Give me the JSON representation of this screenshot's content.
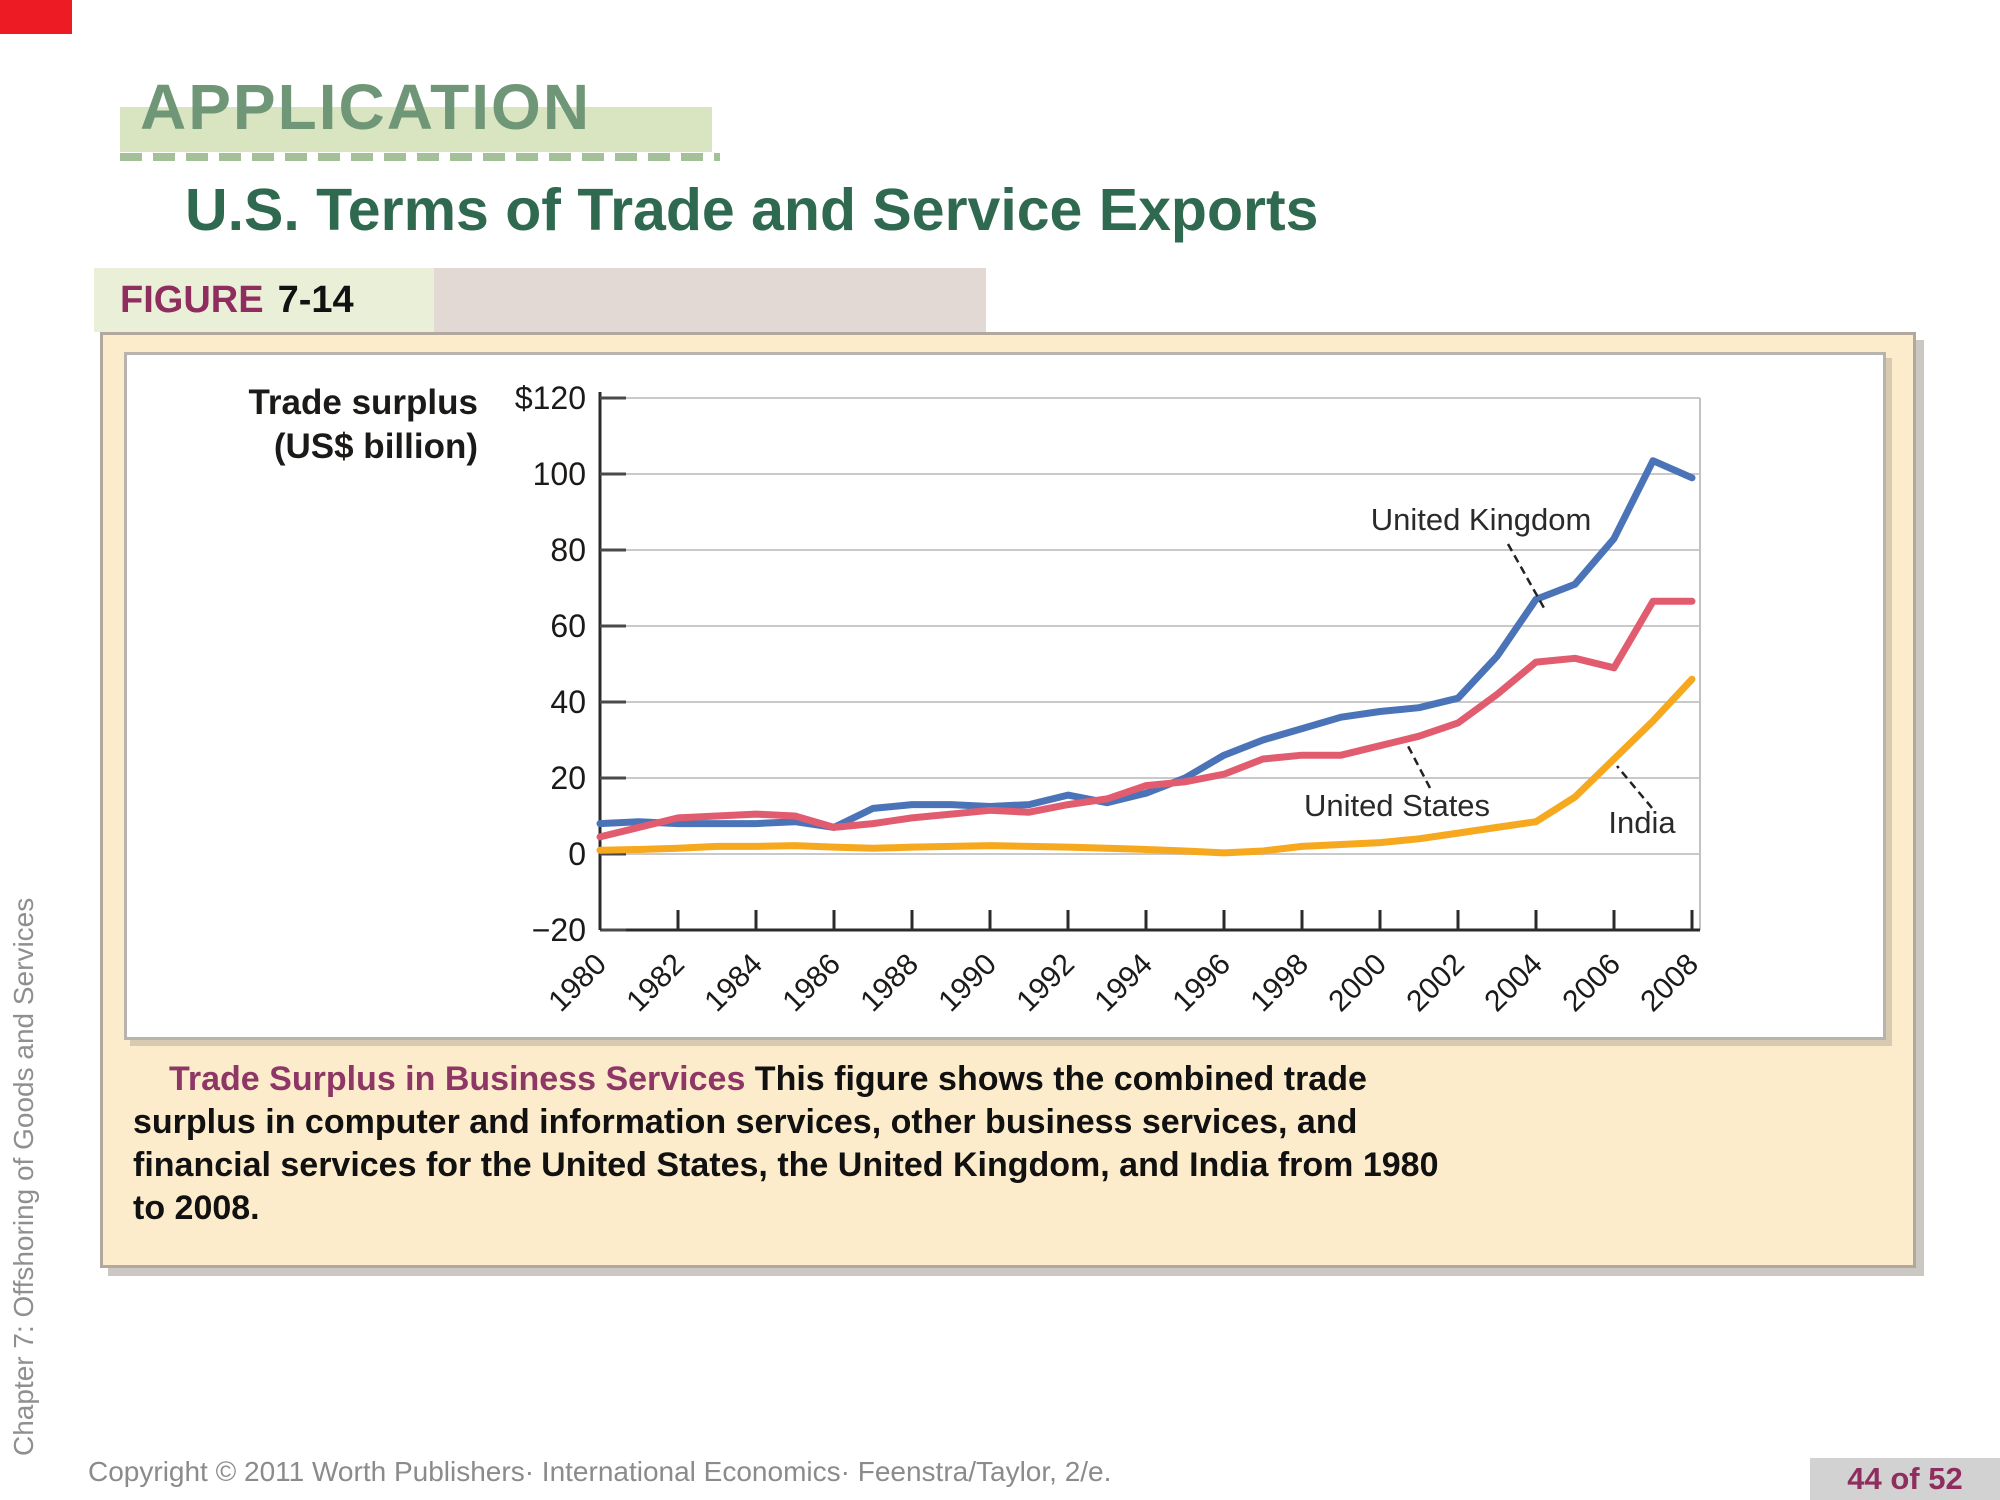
{
  "corner_marker": {
    "color": "#ed1c24"
  },
  "header": {
    "kicker": "APPLICATION",
    "title": "U.S. Terms of Trade and Service Exports"
  },
  "figure": {
    "label": "FIGURE",
    "number": "7-14"
  },
  "chart_data": {
    "type": "line",
    "axis_title_lines": [
      "Trade surplus",
      "(US$ billion)"
    ],
    "x": [
      1980,
      1981,
      1982,
      1983,
      1984,
      1985,
      1986,
      1987,
      1988,
      1989,
      1990,
      1991,
      1992,
      1993,
      1994,
      1995,
      1996,
      1997,
      1998,
      1999,
      2000,
      2001,
      2002,
      2003,
      2004,
      2005,
      2006,
      2007,
      2008
    ],
    "series": [
      {
        "name": "United Kingdom",
        "color": "#4b74b8",
        "values": [
          8,
          8.5,
          8,
          8,
          8,
          8.5,
          7,
          12,
          13,
          13,
          12.5,
          13,
          15.5,
          13.5,
          16,
          20,
          26,
          30,
          33,
          36,
          37.5,
          38.5,
          41,
          52,
          67,
          71,
          83,
          103.5,
          99
        ]
      },
      {
        "name": "United States",
        "color": "#e25c70",
        "values": [
          4.5,
          7,
          9.5,
          10,
          10.5,
          10,
          7,
          8,
          9.5,
          10.5,
          11.5,
          11,
          13,
          14.5,
          18,
          19,
          21,
          25,
          26,
          26,
          28.5,
          31,
          34.5,
          42,
          50.5,
          51.5,
          49,
          66.5,
          66.5
        ]
      },
      {
        "name": "India",
        "color": "#f6a81f",
        "values": [
          1,
          1.2,
          1.5,
          2,
          2,
          2.2,
          1.8,
          1.5,
          1.8,
          2,
          2.2,
          2,
          1.8,
          1.5,
          1.2,
          0.8,
          0.3,
          0.8,
          2,
          2.5,
          3,
          4,
          5.5,
          7,
          8.5,
          15,
          25,
          35,
          46
        ]
      }
    ],
    "ylim": [
      -20,
      120
    ],
    "ytick_values": [
      120,
      100,
      80,
      60,
      40,
      20,
      0,
      -20
    ],
    "ytick_labels": [
      "$120",
      "100",
      "80",
      "60",
      "40",
      "20",
      "0",
      "−20"
    ],
    "xtick_values": [
      1980,
      1982,
      1984,
      1986,
      1988,
      1990,
      1992,
      1994,
      1996,
      1998,
      2000,
      2002,
      2004,
      2006,
      2008
    ],
    "grid": true,
    "legend": "inline annotations with leader lines"
  },
  "caption": {
    "lead": "Trade Surplus in Business Services",
    "line1_rest": " This figure shows the combined trade",
    "line2": "surplus in computer and information services, other business services, and",
    "line3": "financial services for the United States, the United Kingdom, and India from 1980",
    "line4": "to 2008."
  },
  "sidebar": {
    "text": "Chapter 7: Offshoring of Goods and Services"
  },
  "footer": {
    "text": "Copyright © 2011 Worth Publishers· International Economics· Feenstra/Taylor, 2/e."
  },
  "pagination": {
    "text": "44 of 52"
  }
}
